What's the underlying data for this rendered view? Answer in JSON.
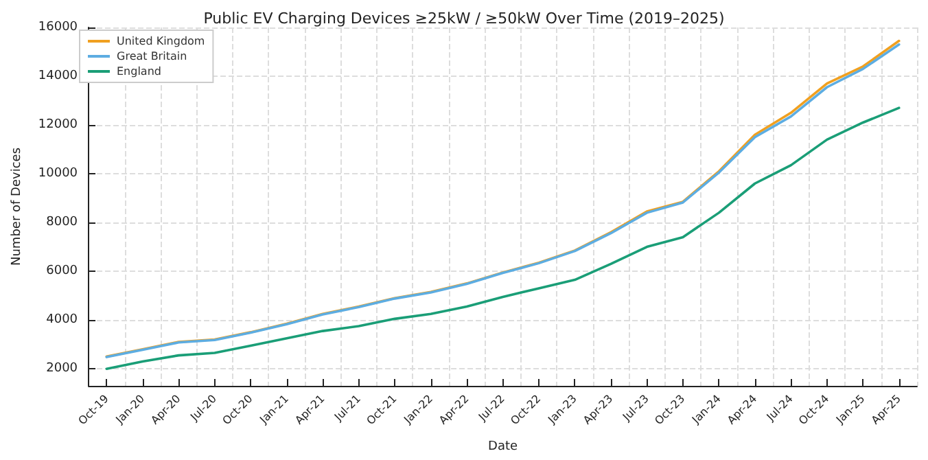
{
  "chart_data": {
    "type": "line",
    "title": "Public EV Charging Devices ≥25kW / ≥50kW Over Time (2019–2025)",
    "xlabel": "Date",
    "ylabel": "Number of Devices",
    "categories": [
      "Oct-19",
      "Jan-20",
      "Apr-20",
      "Jul-20",
      "Oct-20",
      "Jan-21",
      "Apr-21",
      "Jul-21",
      "Oct-21",
      "Jan-22",
      "Apr-22",
      "Jul-22",
      "Oct-22",
      "Jan-23",
      "Apr-23",
      "Jul-23",
      "Oct-23",
      "Jan-24",
      "Apr-24",
      "Jul-24",
      "Oct-24",
      "Jan-25",
      "Apr-25"
    ],
    "series": [
      {
        "name": "United Kingdom",
        "color": "#f0a020",
        "values": [
          2500,
          2800,
          3100,
          3200,
          3500,
          3850,
          4250,
          4550,
          4900,
          5150,
          5500,
          5950,
          6350,
          6850,
          7600,
          8450,
          8850,
          10100,
          11600,
          12500,
          13700,
          14400,
          15450
        ]
      },
      {
        "name": "Great Britain",
        "color": "#5dade2",
        "values": [
          2480,
          2780,
          3080,
          3180,
          3480,
          3830,
          4230,
          4530,
          4880,
          5130,
          5480,
          5930,
          6330,
          6830,
          7560,
          8400,
          8820,
          10050,
          11500,
          12350,
          13550,
          14300,
          15300
        ]
      },
      {
        "name": "England",
        "color": "#1a9e77",
        "values": [
          2000,
          2300,
          2550,
          2650,
          2950,
          3250,
          3550,
          3750,
          4050,
          4250,
          4550,
          4950,
          5300,
          5650,
          6300,
          7000,
          7400,
          8400,
          9600,
          10350,
          11400,
          12100,
          12700
        ]
      }
    ],
    "ylim": [
      1300,
      16000
    ],
    "yticks": [
      2000,
      4000,
      6000,
      8000,
      10000,
      12000,
      14000,
      16000
    ],
    "grid": true,
    "legend": "top left",
    "marker": "none",
    "line_style": "solid"
  }
}
